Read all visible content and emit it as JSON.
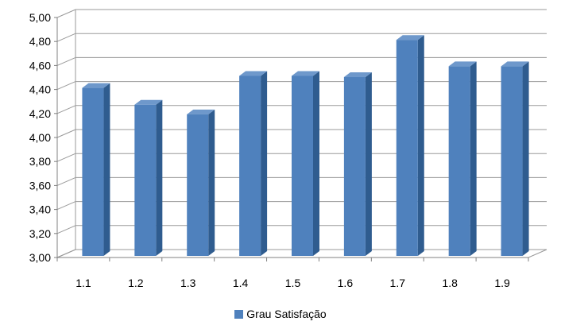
{
  "chart_data": {
    "type": "bar",
    "style": "3d-column",
    "categories": [
      "1.1",
      "1.2",
      "1.3",
      "1.4",
      "1.5",
      "1.6",
      "1.7",
      "1.8",
      "1.9"
    ],
    "series": [
      {
        "name": "Grau Satisfação",
        "values": [
          4.4,
          4.26,
          4.18,
          4.5,
          4.5,
          4.49,
          4.8,
          4.58,
          4.58
        ]
      }
    ],
    "y_ticks": [
      "3,00",
      "3,20",
      "3,40",
      "3,60",
      "3,80",
      "4,00",
      "4,20",
      "4,40",
      "4,60",
      "4,80",
      "5,00"
    ],
    "ylim": [
      3.0,
      5.0
    ],
    "ystep": 0.2,
    "grid": true,
    "legend_position": "bottom",
    "colors": {
      "bar_front": "#4F81BD",
      "bar_side": "#2F5C8F",
      "bar_top": "#6E98CB",
      "gridline": "#9a9a9a",
      "axis": "#808080"
    }
  }
}
